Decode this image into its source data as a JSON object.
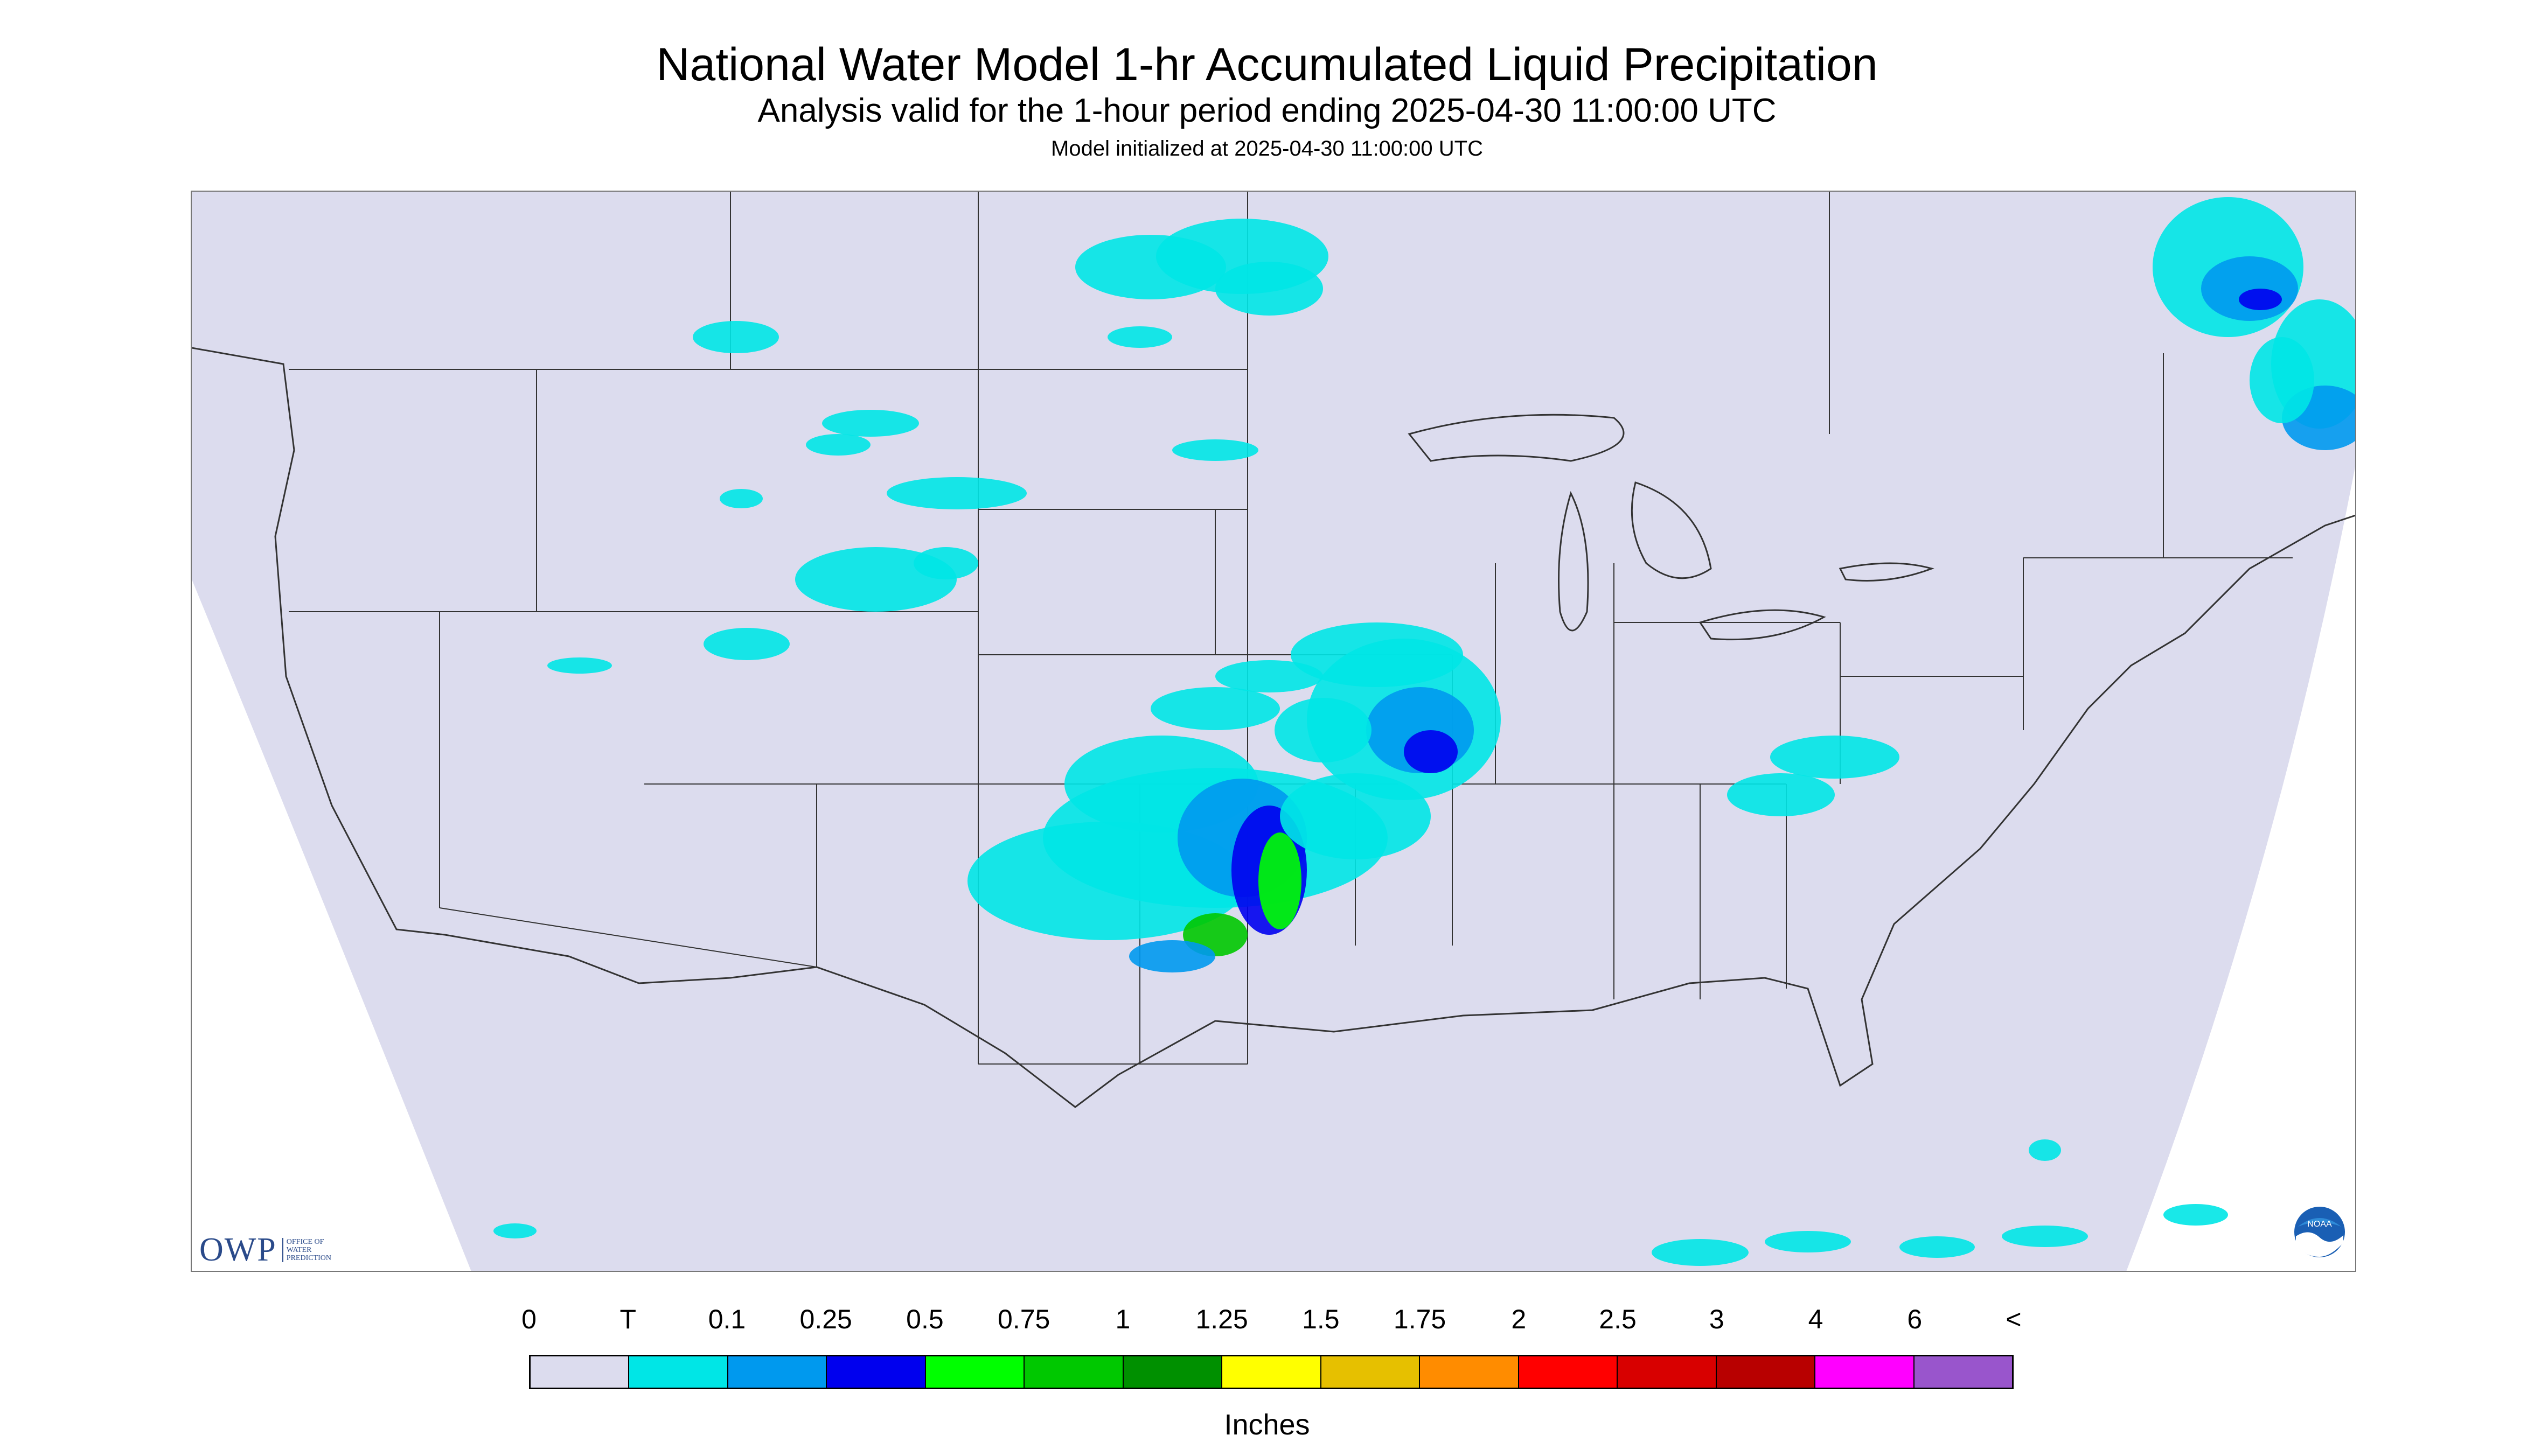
{
  "header": {
    "title": "National Water Model 1-hr Accumulated Liquid Precipitation",
    "subtitle": "Analysis valid for the 1-hour period ending 2025-04-30 11:00:00 UTC",
    "initialized": "Model initialized at 2025-04-30 11:00:00 UTC"
  },
  "map": {
    "background_color": "#dcdcee",
    "outside_color": "#ffffff",
    "border_color": "#333333"
  },
  "logos": {
    "owp_mark": "OWP",
    "owp_text": "OFFICE OF\nWATER\nPREDICTION",
    "noaa_text": "NOAA"
  },
  "legend": {
    "labels": [
      "0",
      "T",
      "0.1",
      "0.25",
      "0.5",
      "0.75",
      "1",
      "1.25",
      "1.5",
      "1.75",
      "2",
      "2.5",
      "3",
      "4",
      "6",
      "<"
    ],
    "colors": [
      "#dcdcee",
      "#00e6e6",
      "#0099ee",
      "#0000ee",
      "#00ff00",
      "#00c800",
      "#009000",
      "#ffff00",
      "#e6c000",
      "#ff8c00",
      "#ff0000",
      "#d80000",
      "#b80000",
      "#ff00ff",
      "#9955cc"
    ],
    "units": "Inches"
  }
}
